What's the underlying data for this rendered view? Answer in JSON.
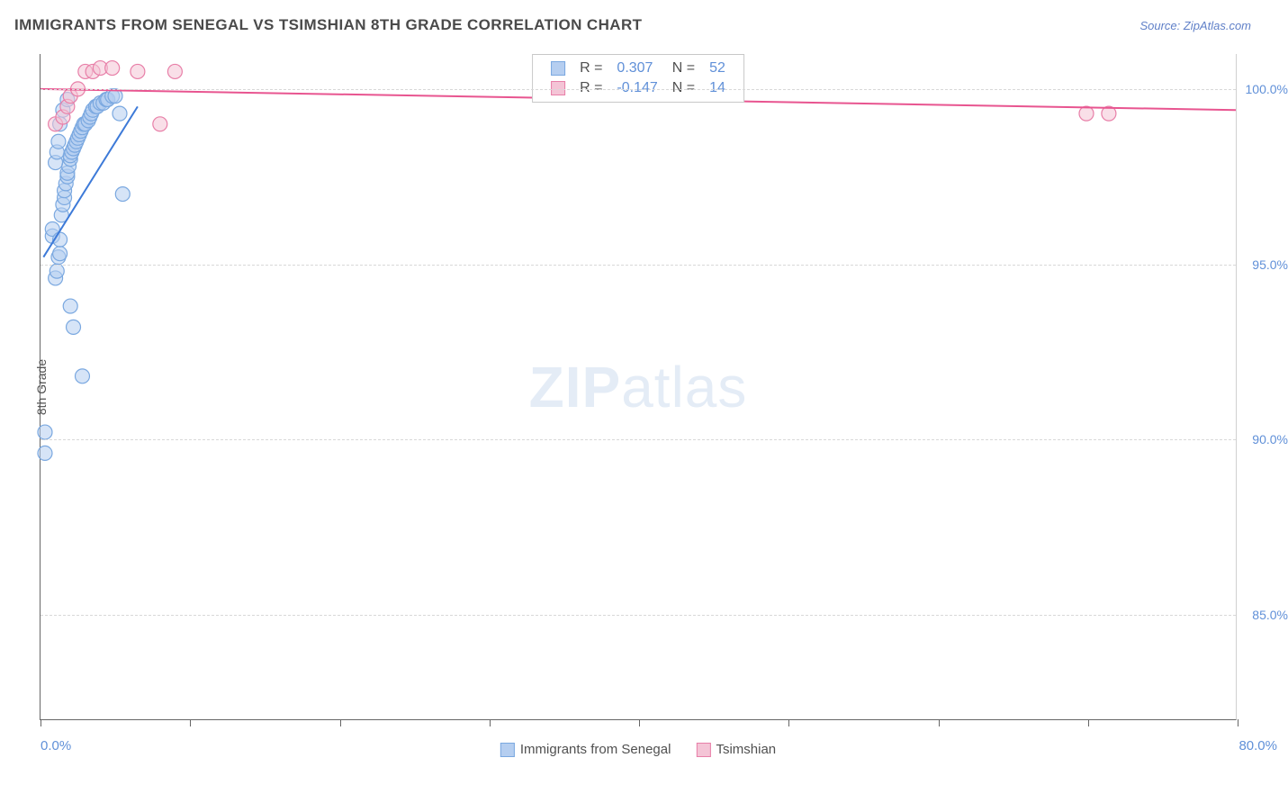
{
  "header": {
    "title": "IMMIGRANTS FROM SENEGAL VS TSIMSHIAN 8TH GRADE CORRELATION CHART",
    "source": "Source: ZipAtlas.com"
  },
  "chart": {
    "type": "scatter",
    "ylabel": "8th Grade",
    "xlim": [
      0,
      80
    ],
    "ylim": [
      82,
      101
    ],
    "xtick_step": 10,
    "yticks": [
      85.0,
      90.0,
      95.0,
      100.0
    ],
    "ytick_labels": [
      "85.0%",
      "90.0%",
      "95.0%",
      "100.0%"
    ],
    "xtick_labels_shown": {
      "min": "0.0%",
      "max": "80.0%"
    },
    "background_color": "#ffffff",
    "grid_color": "#d8d8d8",
    "axis_color": "#666666",
    "watermark": "ZIPatlas",
    "series": [
      {
        "name": "Immigrants from Senegal",
        "color_fill": "#b5cef0",
        "color_stroke": "#7aa8e0",
        "marker_radius": 8,
        "fill_opacity": 0.55,
        "R": "0.307",
        "N": "52",
        "trend": {
          "x1": 0.2,
          "y1": 95.2,
          "x2": 6.5,
          "y2": 99.5,
          "color": "#3d7ad8",
          "width": 2
        },
        "points": [
          [
            0.3,
            90.2
          ],
          [
            0.3,
            89.6
          ],
          [
            0.8,
            95.8
          ],
          [
            0.8,
            96.0
          ],
          [
            1.0,
            94.6
          ],
          [
            1.1,
            94.8
          ],
          [
            1.2,
            95.2
          ],
          [
            1.3,
            95.3
          ],
          [
            1.3,
            95.7
          ],
          [
            1.4,
            96.4
          ],
          [
            1.5,
            96.7
          ],
          [
            1.6,
            96.9
          ],
          [
            1.6,
            97.1
          ],
          [
            1.7,
            97.3
          ],
          [
            1.8,
            97.5
          ],
          [
            1.8,
            97.6
          ],
          [
            1.9,
            97.8
          ],
          [
            2.0,
            98.0
          ],
          [
            2.0,
            98.1
          ],
          [
            2.1,
            98.2
          ],
          [
            2.2,
            98.3
          ],
          [
            2.3,
            98.4
          ],
          [
            2.4,
            98.5
          ],
          [
            2.5,
            98.6
          ],
          [
            2.6,
            98.7
          ],
          [
            2.7,
            98.8
          ],
          [
            2.8,
            98.9
          ],
          [
            2.9,
            99.0
          ],
          [
            3.0,
            99.0
          ],
          [
            3.2,
            99.1
          ],
          [
            3.3,
            99.2
          ],
          [
            3.4,
            99.3
          ],
          [
            3.5,
            99.4
          ],
          [
            3.7,
            99.5
          ],
          [
            3.8,
            99.5
          ],
          [
            4.0,
            99.6
          ],
          [
            4.2,
            99.6
          ],
          [
            4.4,
            99.7
          ],
          [
            4.5,
            99.7
          ],
          [
            4.8,
            99.8
          ],
          [
            5.0,
            99.8
          ],
          [
            5.3,
            99.3
          ],
          [
            5.5,
            97.0
          ],
          [
            2.0,
            93.8
          ],
          [
            2.2,
            93.2
          ],
          [
            2.8,
            91.8
          ],
          [
            1.0,
            97.9
          ],
          [
            1.1,
            98.2
          ],
          [
            1.2,
            98.5
          ],
          [
            1.3,
            99.0
          ],
          [
            1.5,
            99.4
          ],
          [
            1.8,
            99.7
          ]
        ]
      },
      {
        "name": "Tsimshian",
        "color_fill": "#f4c4d6",
        "color_stroke": "#e87fa8",
        "marker_radius": 8,
        "fill_opacity": 0.55,
        "R": "-0.147",
        "N": "14",
        "trend": {
          "x1": 0,
          "y1": 100.0,
          "x2": 80,
          "y2": 99.4,
          "color": "#e85590",
          "width": 2
        },
        "points": [
          [
            1.0,
            99.0
          ],
          [
            1.5,
            99.2
          ],
          [
            1.8,
            99.5
          ],
          [
            2.0,
            99.8
          ],
          [
            2.5,
            100.0
          ],
          [
            3.0,
            100.5
          ],
          [
            3.5,
            100.5
          ],
          [
            4.0,
            100.6
          ],
          [
            4.8,
            100.6
          ],
          [
            6.5,
            100.5
          ],
          [
            8.0,
            99.0
          ],
          [
            9.0,
            100.5
          ],
          [
            70.0,
            99.3
          ],
          [
            71.5,
            99.3
          ]
        ]
      }
    ],
    "stats_box": {
      "border_color": "#c8c8c8",
      "rows": [
        {
          "swatch_fill": "#b5cef0",
          "swatch_stroke": "#7aa8e0",
          "R_label": "R =",
          "R_val": "0.307",
          "N_label": "N =",
          "N_val": "52"
        },
        {
          "swatch_fill": "#f4c4d6",
          "swatch_stroke": "#e87fa8",
          "R_label": "R =",
          "R_val": "-0.147",
          "N_label": "N =",
          "N_val": "14"
        }
      ]
    },
    "legend_bottom": [
      {
        "swatch_fill": "#b5cef0",
        "swatch_stroke": "#7aa8e0",
        "label": "Immigrants from Senegal"
      },
      {
        "swatch_fill": "#f4c4d6",
        "swatch_stroke": "#e87fa8",
        "label": "Tsimshian"
      }
    ]
  }
}
